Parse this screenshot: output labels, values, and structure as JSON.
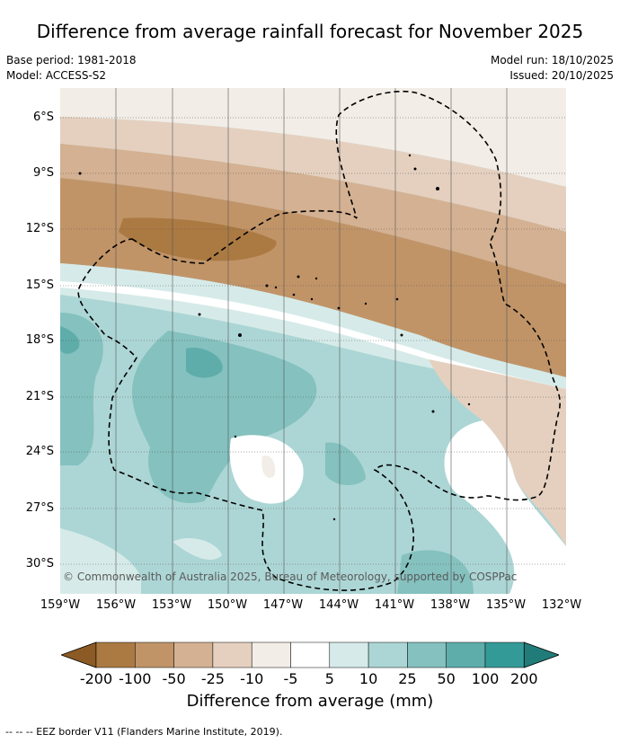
{
  "title": "Difference from average rainfall forecast for November 2025",
  "meta": {
    "base_period": "Base period: 1981-2018",
    "model": "Model: ACCESS-S2",
    "model_run": "Model run: 18/10/2025",
    "issued": "Issued: 20/10/2025"
  },
  "map": {
    "lat_labels": [
      "6°S",
      "9°S",
      "12°S",
      "15°S",
      "18°S",
      "21°S",
      "24°S",
      "27°S",
      "30°S"
    ],
    "lon_labels": [
      "159°W",
      "156°W",
      "153°W",
      "150°W",
      "147°W",
      "144°W",
      "141°W",
      "138°W",
      "135°W",
      "132°W"
    ],
    "copyright": "© Commonwealth of Australia 2025, Bureau of Meteorology, supported by COSPPac"
  },
  "colorbar": {
    "tick_labels": [
      "-200",
      "-100",
      "-50",
      "-25",
      "-10",
      "-5",
      "5",
      "10",
      "25",
      "50",
      "100",
      "200"
    ],
    "colors": [
      "#8c5a24",
      "#ab7a42",
      "#c19468",
      "#d4b192",
      "#e5d0bf",
      "#f2ede6",
      "#ffffff",
      "#d6ebe9",
      "#acd6d5",
      "#84c1bf",
      "#5eadab",
      "#349a97",
      "#217c79"
    ],
    "title": "Difference from average (mm)"
  },
  "footnote": "--  --  -- EEZ border V11 (Flanders Marine Institute, 2019)."
}
